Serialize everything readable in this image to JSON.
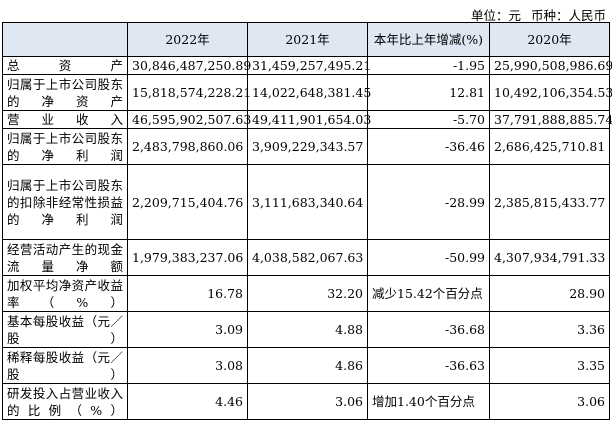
{
  "unit": {
    "unit_label": "单位：元",
    "currency_label": "币种：人民币"
  },
  "table": {
    "headers": [
      "",
      "2022年",
      "2021年",
      "本年比上年增减(%)",
      "2020年"
    ],
    "rows": [
      {
        "label": "总资产",
        "y2022": "30,846,487,250.89",
        "y2021": "31,459,257,495.21",
        "change": "-1.95",
        "y2020": "25,990,508,986.69"
      },
      {
        "label": "归属于上市公司股东的净资产",
        "y2022": "15,818,574,228.21",
        "y2021": "14,022,648,381.45",
        "change": "12.81",
        "y2020": "10,492,106,354.53"
      },
      {
        "label": "营业收入",
        "y2022": "46,595,902,507.63",
        "y2021": "49,411,901,654.03",
        "change": "-5.70",
        "y2020": "37,791,888,885.74"
      },
      {
        "label": "归属于上市公司股东的净利润",
        "y2022": "2,483,798,860.06",
        "y2021": "3,909,229,343.57",
        "change": "-36.46",
        "y2020": "2,686,425,710.81"
      },
      {
        "label": "归属于上市公司股东的扣除非经常性损益的净利润",
        "y2022": "2,209,715,404.76",
        "y2021": "3,111,683,340.64",
        "change": "-28.99",
        "y2020": "2,385,815,433.77"
      },
      {
        "label": "经营活动产生的现金流量净额",
        "y2022": "1,979,383,237.06",
        "y2021": "4,038,582,067.63",
        "change": "-50.99",
        "y2020": "4,307,934,791.33"
      },
      {
        "label": "加权平均净资产收益率（%）",
        "y2022": "16.78",
        "y2021": "32.20",
        "change": "减少15.42个百分点",
        "y2020": "28.90"
      },
      {
        "label": "基本每股收益（元／股）",
        "y2022": "3.09",
        "y2021": "4.88",
        "change": "-36.68",
        "y2020": "3.36"
      },
      {
        "label": "稀释每股收益（元／股）",
        "y2022": "3.08",
        "y2021": "4.86",
        "change": "-36.63",
        "y2020": "3.35"
      },
      {
        "label": "研发投入占营业收入的比例（%）",
        "y2022": "4.46",
        "y2021": "3.06",
        "change": "增加1.40个百分点",
        "y2020": "3.06"
      }
    ]
  },
  "colors": {
    "header_bg": "#dfe7f2",
    "border": "#000000"
  }
}
